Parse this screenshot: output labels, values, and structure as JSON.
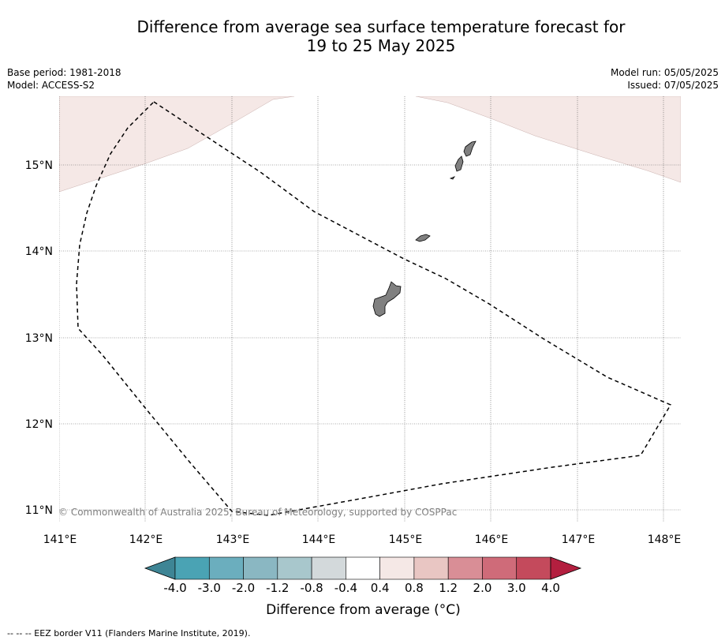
{
  "header": {
    "title_line1": "Difference from average sea surface temperature forecast for",
    "title_line2": "19 to 25 May 2025",
    "base_period": "Base period: 1981-2018",
    "model": "Model: ACCESS-S2",
    "model_run": "Model run: 05/05/2025",
    "issued": "Issued: 07/05/2025"
  },
  "map": {
    "lon_range": [
      141,
      148.2
    ],
    "lat_range": [
      10.75,
      15.8
    ],
    "lon_ticks": [
      "141°E",
      "142°E",
      "143°E",
      "144°E",
      "145°E",
      "146°E",
      "147°E",
      "148°E"
    ],
    "lat_ticks": [
      "11°N",
      "12°N",
      "13°N",
      "14°N",
      "15°N"
    ],
    "grid": true,
    "land_color": "#808080",
    "warm_anomaly_color": "#f5e8e6",
    "islands": [
      "guam",
      "rota",
      "tinian",
      "saipan"
    ],
    "copyright": "© Commonwealth of Australia 2025, Bureau of Meteorology, supported by COSPPac"
  },
  "colorbar": {
    "label": "Difference from average (°C)",
    "ticks": [
      "-4.0",
      "-3.0",
      "-2.0",
      "-1.2",
      "-0.8",
      "-0.4",
      "0.4",
      "0.8",
      "1.2",
      "2.0",
      "3.0",
      "4.0"
    ],
    "colors": [
      "#4aa3b4",
      "#6baebe",
      "#8ab7c2",
      "#a8c7cc",
      "#d3d9db",
      "#ffffff",
      "#f5e8e6",
      "#e9c6c3",
      "#d98e96",
      "#cf6b79",
      "#c44a5c"
    ],
    "under_color": "#3e8595",
    "over_color": "#b31f3f"
  },
  "legend": {
    "eez": "--  --  -- EEZ border V11 (Flanders Marine Institute, 2019)."
  }
}
